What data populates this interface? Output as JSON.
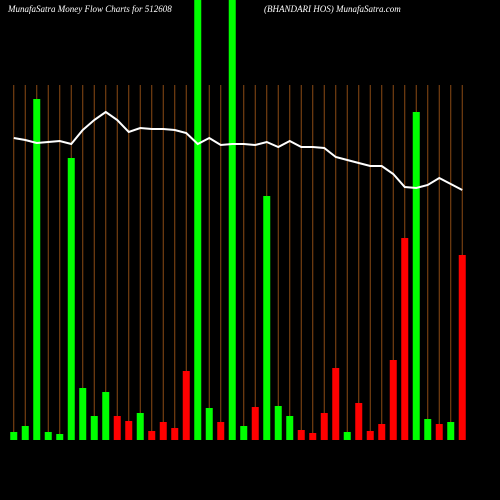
{
  "chart_data": {
    "type": "bar",
    "title": "MunafaSatra  Money Flow  Charts for 512608",
    "subtitle": "(BHANDARI HOS) MunafaSatra.com",
    "ylim": [
      0,
      440
    ],
    "grid": true,
    "grid_color": "#8b4a14",
    "categories": [
      null,
      null,
      null,
      null,
      null,
      null,
      null,
      null,
      null,
      null,
      null,
      null,
      null,
      null,
      null,
      null,
      null,
      null,
      null,
      null,
      null,
      null,
      null,
      null,
      null,
      null,
      null,
      null,
      null,
      null,
      null,
      null,
      null,
      null,
      null,
      null,
      null,
      null,
      null,
      null
    ],
    "values": [
      8,
      14,
      341,
      8,
      6,
      282,
      52,
      24,
      48,
      24,
      19,
      27,
      9,
      18,
      12,
      69,
      460,
      32,
      18,
      460,
      14,
      33,
      244,
      34,
      24,
      10,
      7,
      27,
      72,
      8,
      37,
      9,
      16,
      80,
      202,
      328,
      21,
      16,
      18,
      185
    ],
    "colors": [
      "#00ff00",
      "#00ff00",
      "#00ff00",
      "#00ff00",
      "#00ff00",
      "#00ff00",
      "#00ff00",
      "#00ff00",
      "#00ff00",
      "#ff0000",
      "#ff0000",
      "#00ff00",
      "#ff0000",
      "#ff0000",
      "#ff0000",
      "#ff0000",
      "#00ff00",
      "#00ff00",
      "#ff0000",
      "#00ff00",
      "#00ff00",
      "#ff0000",
      "#00ff00",
      "#00ff00",
      "#00ff00",
      "#ff0000",
      "#ff0000",
      "#ff0000",
      "#ff0000",
      "#00ff00",
      "#ff0000",
      "#ff0000",
      "#ff0000",
      "#ff0000",
      "#ff0000",
      "#00ff00",
      "#00ff00",
      "#ff0000",
      "#00ff00",
      "#ff0000"
    ],
    "line": {
      "color": "#ffffff",
      "values": [
        302,
        300,
        297,
        298,
        299,
        296,
        310,
        320,
        328,
        320,
        308,
        312,
        311,
        311,
        310,
        307,
        296,
        302,
        295,
        296,
        296,
        295,
        298,
        293,
        299,
        293,
        293,
        292,
        283,
        280,
        277,
        274,
        274,
        266,
        253,
        252,
        255,
        262,
        256,
        250
      ]
    }
  }
}
